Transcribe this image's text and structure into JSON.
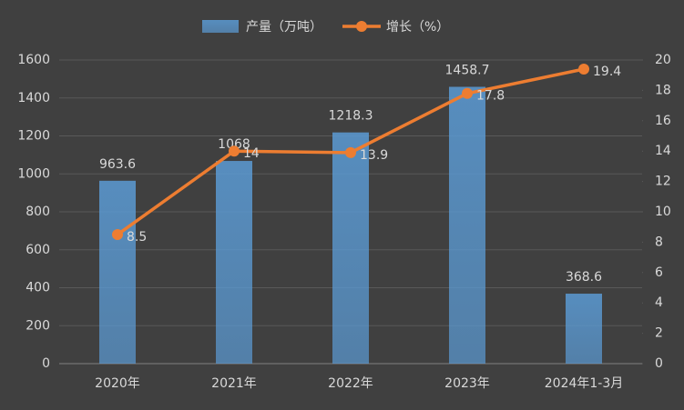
{
  "chart_data": {
    "type": "bar_line",
    "categories": [
      "2020年",
      "2021年",
      "2022年",
      "2023年",
      "2024年1-3月"
    ],
    "series": [
      {
        "name": "产量（万吨）",
        "color": "#5b9bd5",
        "type": "bar",
        "values": [
          963.6,
          1068,
          1218.3,
          1458.7,
          368.6
        ]
      },
      {
        "name": "增长（%）",
        "color": "#ed7d31",
        "type": "line",
        "axis": "y2",
        "values": [
          8.5,
          14,
          13.9,
          17.8,
          19.4
        ]
      }
    ],
    "ylim": [
      0,
      1600
    ],
    "yticks": [
      0,
      200,
      400,
      600,
      800,
      1000,
      1200,
      1400,
      1600
    ],
    "y2lim": [
      0,
      20
    ],
    "y2ticks": [
      0,
      2,
      4,
      6,
      8,
      10,
      12,
      14,
      16,
      18,
      20
    ],
    "grid": true,
    "legend": "top"
  }
}
